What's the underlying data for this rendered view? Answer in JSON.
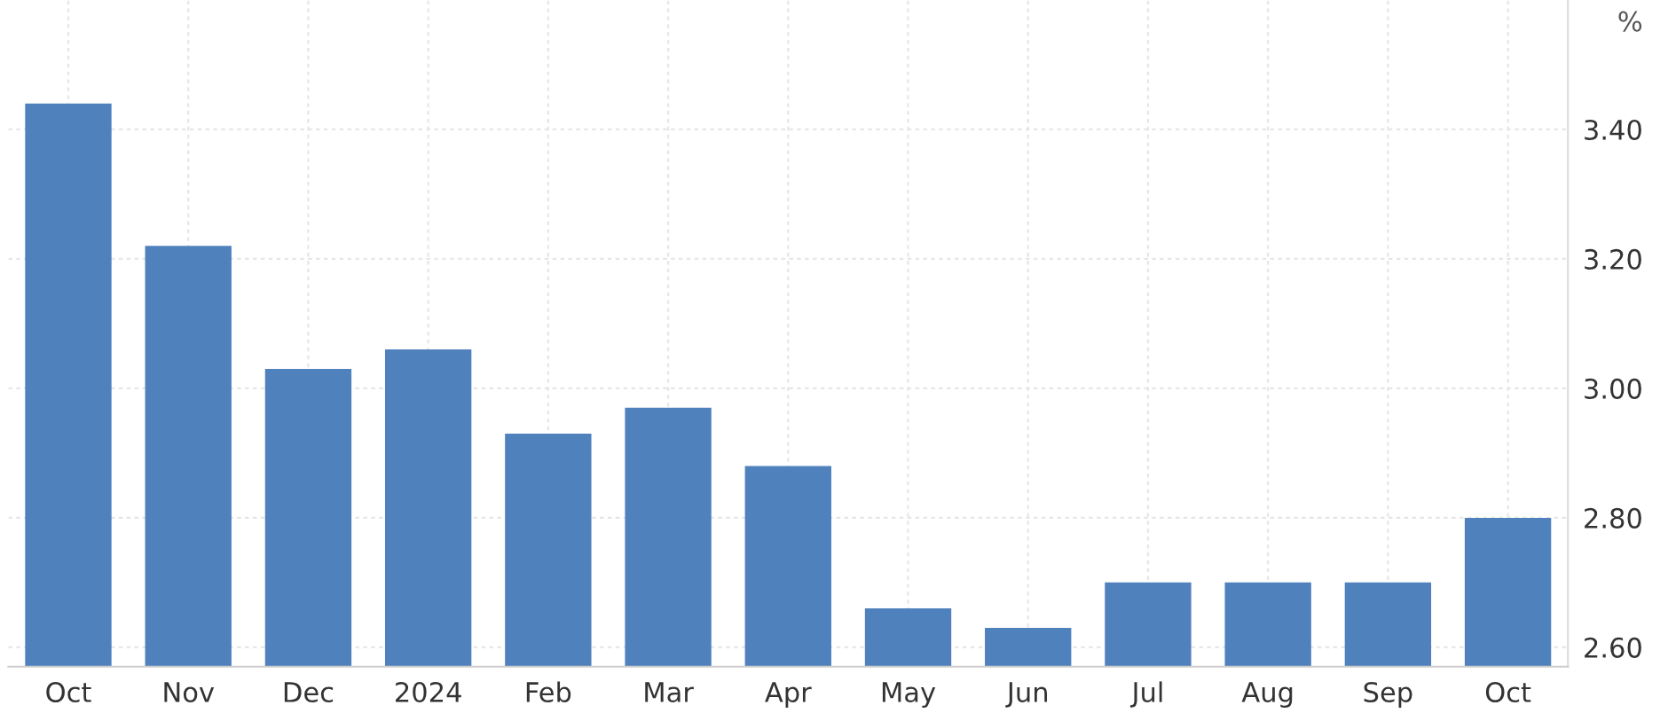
{
  "chart_data": {
    "type": "bar",
    "ylabel": "%",
    "categories": [
      "Oct",
      "Nov",
      "Dec",
      "2024",
      "Feb",
      "Mar",
      "Apr",
      "May",
      "Jun",
      "Jul",
      "Aug",
      "Sep",
      "Oct"
    ],
    "values": [
      3.44,
      3.22,
      3.03,
      3.06,
      2.93,
      2.97,
      2.88,
      2.66,
      2.63,
      2.7,
      2.7,
      2.7,
      2.8
    ],
    "color": "#4f81bd",
    "ylim": [
      2.57,
      3.6
    ],
    "yticks": [
      {
        "value": 2.6,
        "label": "2.60"
      },
      {
        "value": 2.8,
        "label": "2.80"
      },
      {
        "value": 3.0,
        "label": "3.00"
      },
      {
        "value": 3.2,
        "label": "3.20"
      },
      {
        "value": 3.4,
        "label": "3.40"
      }
    ],
    "grid": true
  }
}
